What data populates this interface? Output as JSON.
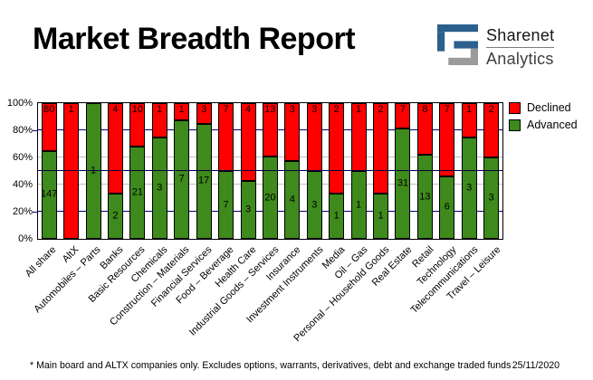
{
  "header": {
    "title": "Market Breadth Report",
    "brand_name": "Sharenet",
    "brand_sub": "Analytics"
  },
  "legend": [
    {
      "label": "Declined",
      "color": "#FF0000"
    },
    {
      "label": "Advanced",
      "color": "#3E8A1C"
    }
  ],
  "colors": {
    "declined": "#FF0000",
    "advanced": "#3E8A1C",
    "grid_major": "#000080",
    "grid_minor": "#C0C0C0",
    "fifty_line": "#000040",
    "plot_border": "#000000",
    "logo_blue": "#2B5F8C",
    "logo_gray": "#9B9B9B"
  },
  "chart_data": {
    "type": "bar",
    "stacked": true,
    "normalized": "percent",
    "title": "Market Breadth Report",
    "categories": [
      "All share",
      "AltX",
      "Automobiles – Parts",
      "Banks",
      "Basic Resources",
      "Chemicals",
      "Construction – Materials",
      "Financial Services",
      "Food – Beverage",
      "Health Care",
      "Industrial Goods – Services",
      "Insurance",
      "Investment Instruments",
      "Media",
      "Oil – Gas",
      "Personal – Household Goods",
      "Real Estate",
      "Retail",
      "Technology",
      "Telecommunications",
      "Travel – Leisure"
    ],
    "series": [
      {
        "name": "Declined",
        "color": "#FF0000",
        "values": [
          80,
          1,
          0,
          4,
          10,
          1,
          1,
          3,
          7,
          4,
          13,
          3,
          3,
          2,
          1,
          2,
          7,
          8,
          7,
          1,
          2
        ]
      },
      {
        "name": "Advanced",
        "color": "#3E8A1C",
        "values": [
          147,
          0,
          1,
          2,
          21,
          3,
          7,
          17,
          7,
          3,
          20,
          4,
          3,
          1,
          1,
          1,
          31,
          13,
          6,
          3,
          3
        ]
      }
    ],
    "xlabel": "",
    "ylabel": "",
    "ylim": [
      0,
      100
    ],
    "y_ticks": [
      "0%",
      "20%",
      "40%",
      "60%",
      "80%",
      "100%"
    ],
    "gridlines": [
      {
        "pct": 20,
        "style": "major"
      },
      {
        "pct": 40,
        "style": "minor"
      },
      {
        "pct": 60,
        "style": "minor"
      },
      {
        "pct": 80,
        "style": "major"
      }
    ],
    "reference_line_pct": 50,
    "legend_position": "top-right",
    "grid": true
  },
  "footer": {
    "note": "* Main board and ALTX companies only. Excludes options, warrants, derivatives, debt and exchange traded funds",
    "date": "25/11/2020"
  }
}
